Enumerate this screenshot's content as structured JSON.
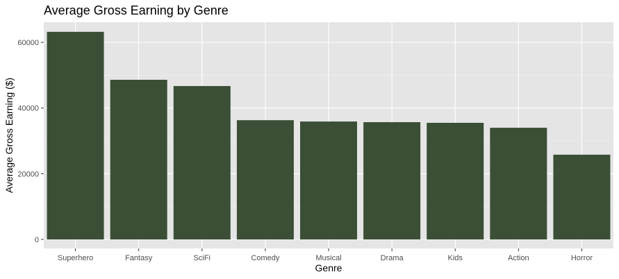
{
  "chart_data": {
    "type": "bar",
    "title": "Average Gross Earning by Genre",
    "xlabel": "Genre",
    "ylabel": "Average Gross Earning ($)",
    "categories": [
      "Superhero",
      "Fantasy",
      "SciFi",
      "Comedy",
      "Musical",
      "Drama",
      "Kids",
      "Action",
      "Horror"
    ],
    "values": [
      63200,
      48600,
      46700,
      36300,
      35900,
      35700,
      35500,
      34000,
      25800
    ],
    "ylim": [
      0,
      66000
    ],
    "yticks": [
      0,
      20000,
      40000,
      60000
    ],
    "ytick_labels": [
      "0",
      "20000",
      "40000",
      "60000"
    ],
    "grid": true,
    "legend": "none"
  },
  "colors": {
    "bar": "#3b4f36",
    "panel_background": "#e5e5e5",
    "grid_major": "#ffffff",
    "grid_minor": "#f2f2f2",
    "tick_text": "#4d4d4d",
    "tick_mark": "#333333"
  }
}
